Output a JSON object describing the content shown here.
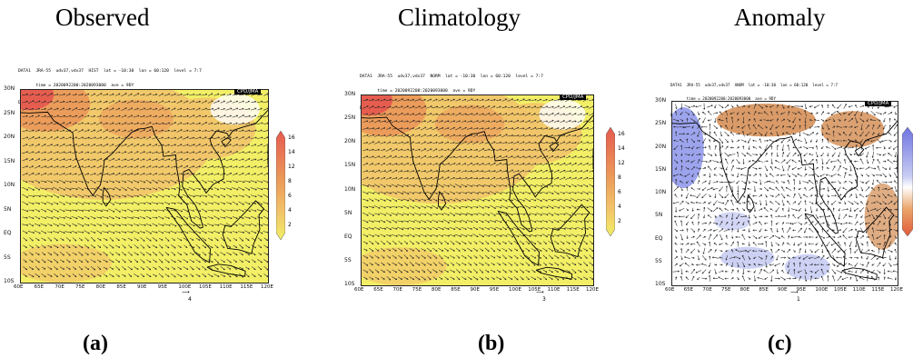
{
  "titles": {
    "a": "Observed",
    "b": "Climatology",
    "c": "Anomaly"
  },
  "sublabels": {
    "a": "(a)",
    "b": "(b)",
    "c": "(c)"
  },
  "panel_a": {
    "header_line1": "DATA1  JRA-55  udv37,vdv37  HIST  lat = -10:30  lon = 60:120  level = 7:7",
    "header_line2": "       time = 2020092200:2020093000  ave = 9DY",
    "header_line3": "DATA2  JRA-55  ttd27  HIST  lat = -10:30  lon = 60:120  level = 7:7",
    "header_line4": "       time = 2020092200:2020093000  ave = 9DY  analysis method = DATA1_DATA2",
    "ref_vector": "4",
    "colorbar_labels": [
      "16",
      "14",
      "12",
      "8",
      "6",
      "4",
      "2"
    ]
  },
  "panel_b": {
    "header_line1": "DATA1  JRA-55  udv37,vdv37  NORM  lat = -10:30  lon = 60:120  level = 7:7",
    "header_line2": "       time = 2020092200:2020093000  ave = 9DY",
    "header_line3": "DATA2  JRA-55  ttd27  NORM  lat = -10:30  lon = 60:120  level = 7:7",
    "header_line4": "       time = 2020092200:2020093000  ave = 9DY  analysis method = DATA1_DATA2",
    "ref_vector": "3",
    "colorbar_labels": [
      "16",
      "14",
      "12",
      "8",
      "6",
      "4",
      "2"
    ]
  },
  "panel_c": {
    "header_line1": "DATA1  JRA-55  udv37,vdv37  ANOM  lat = -10:30  lon = 60:120  level = 7:7",
    "header_line2": "       time = 2020092200:2020093000  ave = 9DY",
    "header_line3": "DATA2  JRA-55  ttd27  ANOM  lat = -10:30  lon = 60:120  level = 7:7",
    "header_line4": "       time = 2020092200:2020093000  ave = 9DY  analysis method = DATA1_DATA2",
    "ref_vector": "1"
  },
  "badge": "CPD/JMA",
  "lat_ticks": [
    "30N",
    "25N",
    "20N",
    "15N",
    "10N",
    "5N",
    "EQ",
    "5S",
    "10S"
  ],
  "lon_ticks": [
    "60E",
    "65E",
    "70E",
    "75E",
    "80E",
    "85E",
    "90E",
    "95E",
    "100E",
    "105E",
    "110E",
    "115E",
    "120E"
  ],
  "colors": {
    "yellow": "#f2ef66",
    "light_orange": "#f2c46a",
    "orange": "#eb9a5a",
    "red": "#e65a4f",
    "blue": "#8c94ea",
    "light_blue": "#c8cdf3",
    "brown": "#d38a4e"
  }
}
